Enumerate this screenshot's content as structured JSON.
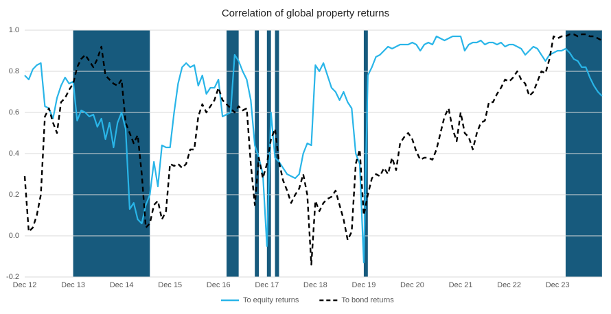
{
  "chart_data": {
    "type": "line",
    "title": "Correlation of global property returns",
    "categories": [
      "Dec 12",
      null,
      null,
      null,
      null,
      null,
      null,
      null,
      null,
      null,
      null,
      null,
      "Dec 13",
      null,
      null,
      null,
      null,
      null,
      null,
      null,
      null,
      null,
      null,
      null,
      "Dec 14",
      null,
      null,
      null,
      null,
      null,
      null,
      null,
      null,
      null,
      null,
      null,
      "Dec 15",
      null,
      null,
      null,
      null,
      null,
      null,
      null,
      null,
      null,
      null,
      null,
      "Dec 16",
      null,
      null,
      null,
      null,
      null,
      null,
      null,
      null,
      null,
      null,
      null,
      "Dec 17",
      null,
      null,
      null,
      null,
      null,
      null,
      null,
      null,
      null,
      null,
      null,
      "Dec 18",
      null,
      null,
      null,
      null,
      null,
      null,
      null,
      null,
      null,
      null,
      null,
      "Dec 19",
      null,
      null,
      null,
      null,
      null,
      null,
      null,
      null,
      null,
      null,
      null,
      "Dec 20",
      null,
      null,
      null,
      null,
      null,
      null,
      null,
      null,
      null,
      null,
      null,
      "Dec 21",
      null,
      null,
      null,
      null,
      null,
      null,
      null,
      null,
      null,
      null,
      null,
      "Dec 22",
      null,
      null,
      null,
      null,
      null,
      null,
      null,
      null,
      null,
      null,
      null,
      "Dec 23",
      null,
      null,
      null,
      null,
      null,
      null,
      null,
      null,
      null,
      null,
      null
    ],
    "series": [
      {
        "name": "To equity returns",
        "color": "#29b5e8",
        "dash": false,
        "values": [
          0.78,
          0.76,
          0.81,
          0.83,
          0.84,
          0.63,
          0.62,
          0.57,
          0.67,
          0.73,
          0.77,
          0.74,
          0.75,
          0.56,
          0.61,
          0.6,
          0.58,
          0.59,
          0.53,
          0.57,
          0.47,
          0.55,
          0.43,
          0.55,
          0.6,
          0.52,
          0.13,
          0.16,
          0.08,
          0.06,
          0.15,
          0.2,
          0.36,
          0.24,
          0.44,
          0.43,
          0.43,
          0.6,
          0.74,
          0.82,
          0.84,
          0.82,
          0.83,
          0.73,
          0.78,
          0.69,
          0.72,
          0.72,
          0.76,
          0.58,
          0.59,
          0.6,
          0.88,
          0.85,
          0.8,
          0.76,
          0.66,
          0.44,
          0.38,
          0.3,
          -0.05,
          0.6,
          0.38,
          0.36,
          0.33,
          0.3,
          0.29,
          0.28,
          0.3,
          0.4,
          0.45,
          0.44,
          0.83,
          0.8,
          0.84,
          0.78,
          0.72,
          0.7,
          0.66,
          0.7,
          0.65,
          0.62,
          0.4,
          0.35,
          -0.13,
          0.78,
          0.82,
          0.87,
          0.88,
          0.9,
          0.92,
          0.91,
          0.92,
          0.93,
          0.93,
          0.93,
          0.94,
          0.93,
          0.9,
          0.93,
          0.94,
          0.93,
          0.97,
          0.96,
          0.95,
          0.96,
          0.97,
          0.97,
          0.97,
          0.9,
          0.93,
          0.94,
          0.94,
          0.95,
          0.93,
          0.94,
          0.94,
          0.93,
          0.94,
          0.92,
          0.93,
          0.93,
          0.92,
          0.91,
          0.88,
          0.9,
          0.92,
          0.91,
          0.88,
          0.85,
          0.88,
          0.89,
          0.9,
          0.9,
          0.91,
          0.89,
          0.86,
          0.85,
          0.82,
          0.82,
          0.77,
          0.73,
          0.7,
          0.68
        ]
      },
      {
        "name": "To bond returns",
        "color": "#000000",
        "dash": true,
        "values": [
          0.29,
          0.02,
          0.04,
          0.1,
          0.2,
          0.58,
          0.62,
          0.55,
          0.5,
          0.65,
          0.67,
          0.71,
          0.74,
          0.82,
          0.86,
          0.88,
          0.85,
          0.82,
          0.86,
          0.92,
          0.78,
          0.76,
          0.74,
          0.73,
          0.76,
          0.55,
          0.5,
          0.45,
          0.49,
          0.3,
          0.04,
          0.06,
          0.15,
          0.17,
          0.08,
          0.12,
          0.35,
          0.34,
          0.35,
          0.33,
          0.35,
          0.42,
          0.42,
          0.58,
          0.64,
          0.6,
          0.63,
          0.66,
          0.72,
          0.66,
          0.64,
          0.62,
          0.6,
          0.63,
          0.61,
          0.62,
          0.35,
          0.15,
          0.38,
          0.28,
          0.35,
          0.47,
          0.52,
          0.36,
          0.27,
          0.22,
          0.16,
          0.2,
          0.23,
          0.3,
          0.2,
          -0.14,
          0.17,
          0.12,
          0.16,
          0.18,
          0.19,
          0.22,
          0.15,
          0.08,
          -0.02,
          0.02,
          0.35,
          0.42,
          0.1,
          0.2,
          0.28,
          0.3,
          0.29,
          0.33,
          0.3,
          0.38,
          0.32,
          0.45,
          0.48,
          0.5,
          0.47,
          0.41,
          0.37,
          0.38,
          0.38,
          0.37,
          0.42,
          0.5,
          0.58,
          0.62,
          0.52,
          0.46,
          0.6,
          0.5,
          0.48,
          0.42,
          0.5,
          0.55,
          0.56,
          0.65,
          0.65,
          0.69,
          0.72,
          0.76,
          0.75,
          0.77,
          0.8,
          0.76,
          0.74,
          0.68,
          0.7,
          0.75,
          0.8,
          0.79,
          0.86,
          0.97,
          0.96,
          0.97,
          0.97,
          0.98,
          0.98,
          0.97,
          0.98,
          0.98,
          0.97,
          0.97,
          0.96,
          0.95
        ]
      }
    ],
    "shaded": [
      [
        12,
        31
      ],
      [
        50,
        53
      ],
      [
        57,
        58
      ],
      [
        60,
        61
      ],
      [
        62,
        63
      ],
      [
        84,
        85
      ],
      [
        134,
        143
      ]
    ],
    "shade_color": "#175a7d",
    "ylim": [
      -0.2,
      1.0
    ],
    "yticks": [
      {
        "value": -0.2,
        "label": "-0.2"
      },
      {
        "value": 0,
        "label": "0.0"
      },
      {
        "value": 0.2,
        "label": "0.2"
      },
      {
        "value": 0.4,
        "label": "0.4"
      },
      {
        "value": 0.6,
        "label": "0.6"
      },
      {
        "value": 0.8,
        "label": "0.8"
      },
      {
        "value": 1.0,
        "label": "1.0"
      }
    ],
    "grid": true,
    "legend": "bottom"
  }
}
